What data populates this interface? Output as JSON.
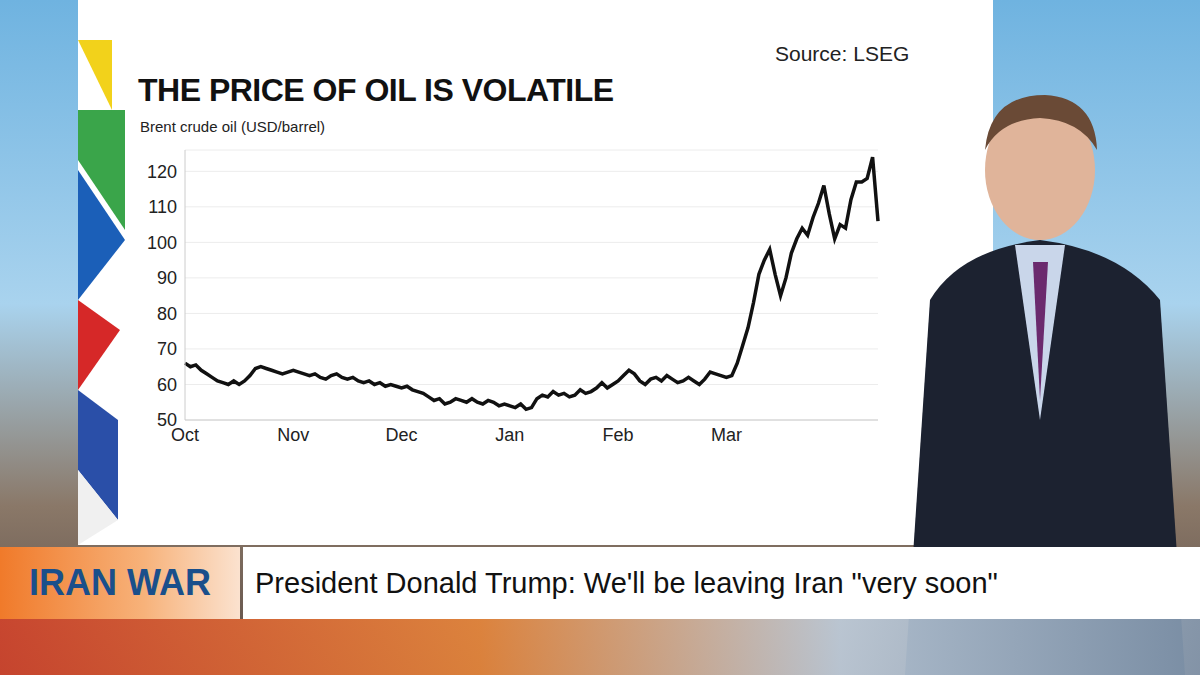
{
  "chart_data": {
    "type": "line",
    "title": "THE PRICE OF OIL IS VOLATILE",
    "y_label": "Brent crude oil (USD/barrel)",
    "annotations": [
      "Source: LSEG",
      "IRAN WAR",
      "President Donald Trump: We'll be leaving Iran \"very soon\""
    ],
    "color": "#111111",
    "grid": true,
    "ylim": [
      50,
      126
    ],
    "yticks": [
      50,
      60,
      70,
      80,
      90,
      100,
      110,
      120
    ],
    "categories": [
      "Oct",
      null,
      null,
      null,
      null,
      null,
      null,
      null,
      null,
      null,
      null,
      null,
      null,
      null,
      null,
      null,
      null,
      null,
      null,
      null,
      "Nov",
      null,
      null,
      null,
      null,
      null,
      null,
      null,
      null,
      null,
      null,
      null,
      null,
      null,
      null,
      null,
      null,
      null,
      null,
      null,
      "Dec",
      null,
      null,
      null,
      null,
      null,
      null,
      null,
      null,
      null,
      null,
      null,
      null,
      null,
      null,
      null,
      null,
      null,
      null,
      null,
      "Jan",
      null,
      null,
      null,
      null,
      null,
      null,
      null,
      null,
      null,
      null,
      null,
      null,
      null,
      null,
      null,
      null,
      null,
      null,
      null,
      "Feb",
      null,
      null,
      null,
      null,
      null,
      null,
      null,
      null,
      null,
      null,
      null,
      null,
      null,
      null,
      null,
      null,
      null,
      null,
      null,
      "Mar",
      null,
      null,
      null,
      null,
      null,
      null,
      null,
      null,
      null,
      null,
      null,
      null,
      null,
      null,
      null,
      null,
      null,
      null,
      null,
      null,
      null,
      null,
      null,
      null,
      null,
      null,
      null,
      null
    ],
    "values": [
      66,
      65,
      65.5,
      64,
      63,
      62,
      61,
      60.5,
      60,
      61,
      60,
      61,
      62.5,
      64.5,
      65,
      64.5,
      64,
      63.5,
      63,
      63.5,
      64,
      63.5,
      63,
      62.5,
      63,
      62,
      61.5,
      62.5,
      63,
      62,
      61.5,
      62,
      61,
      60.5,
      61,
      60,
      60.5,
      59.5,
      60,
      59.5,
      59,
      59.5,
      58.5,
      58,
      57.5,
      56.5,
      55.5,
      56,
      54.5,
      55,
      56,
      55.5,
      55,
      56,
      55,
      54.5,
      55.5,
      55,
      54,
      54.5,
      54,
      53.5,
      54.5,
      53,
      53.5,
      56,
      57,
      56.5,
      58,
      57,
      57.5,
      56.5,
      57,
      58.5,
      57.5,
      58,
      59,
      60.5,
      59,
      60,
      61,
      62.5,
      64,
      63,
      61,
      60,
      61.5,
      62,
      61,
      62.5,
      61.5,
      60.5,
      61,
      62,
      61,
      60,
      61.5,
      63.5,
      63,
      62.5,
      62,
      62.5,
      66,
      71,
      76,
      83,
      91,
      95,
      98,
      91,
      85,
      90,
      97,
      101,
      104,
      102,
      107,
      111,
      116,
      108,
      101,
      105,
      104,
      112,
      117,
      117,
      118,
      124,
      106
    ]
  }
}
